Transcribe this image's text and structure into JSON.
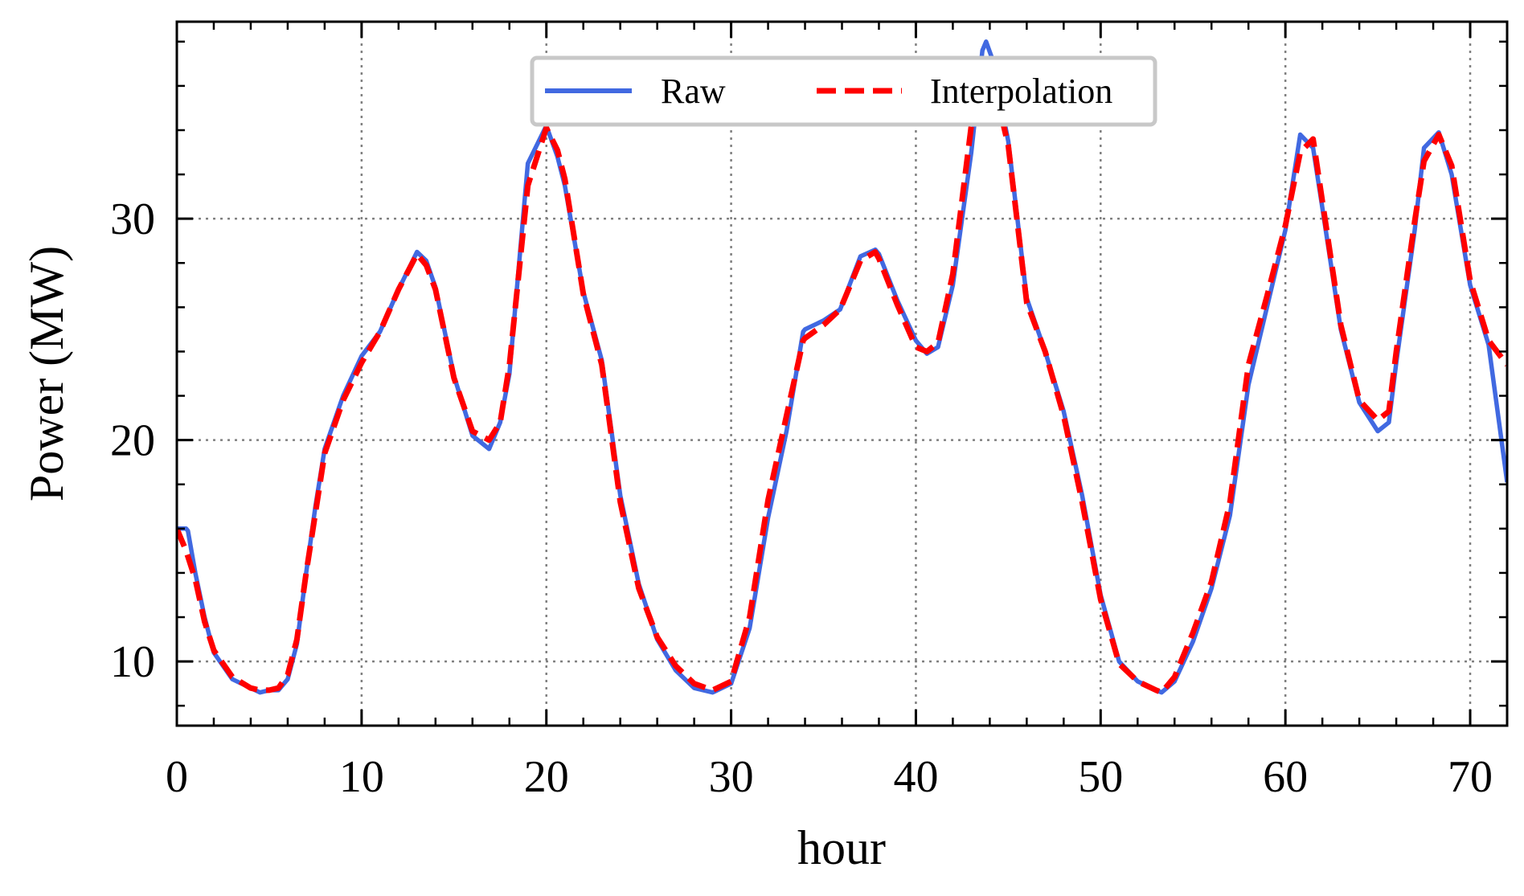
{
  "chart_data": {
    "type": "line",
    "xlabel": "hour",
    "ylabel": "Power (MW)",
    "xlim": [
      0,
      72
    ],
    "ylim": [
      7.1,
      38.9
    ],
    "xticks": [
      0,
      10,
      20,
      30,
      40,
      50,
      60,
      70
    ],
    "yticks": [
      10,
      20,
      30
    ],
    "x_minor_step": 2,
    "y_minor_step": 2,
    "grid": "on (dotted, major ticks)",
    "legend": {
      "position": "top-center",
      "columns": 2
    },
    "series": [
      {
        "name": "Raw",
        "color": "#4169e1",
        "style": "solid",
        "x": [
          0,
          0.5,
          0.6,
          1,
          1.5,
          2,
          3,
          4,
          4.5,
          5,
          5.5,
          6,
          6.5,
          7,
          7.5,
          8,
          9,
          10,
          11,
          12,
          13,
          13.5,
          14,
          15,
          16,
          16.9,
          17.5,
          18,
          19,
          20,
          20.6,
          21,
          22,
          23,
          24,
          25,
          26,
          27,
          28,
          29,
          30,
          31,
          32,
          33,
          33.9,
          34,
          35,
          35.9,
          37,
          37.8,
          38,
          39,
          40,
          40.6,
          41.2,
          42,
          43,
          43.6,
          43.8,
          44.1,
          45,
          46,
          47,
          48,
          49,
          50,
          51,
          52,
          53,
          53.3,
          54,
          55,
          56,
          57,
          58,
          59,
          60,
          60.8,
          61.5,
          62,
          63,
          64,
          65,
          65.6,
          66,
          67,
          67.5,
          68.3,
          69,
          70,
          71,
          72
        ],
        "y": [
          16,
          16,
          15.9,
          14,
          12,
          10.4,
          9.2,
          8.8,
          8.6,
          8.7,
          8.7,
          9.2,
          10.8,
          14,
          17,
          19.6,
          22,
          23.8,
          24.9,
          26.8,
          28.5,
          28.1,
          26.9,
          22.9,
          20.2,
          19.6,
          20.8,
          23,
          32.5,
          34.2,
          32.8,
          31.5,
          26.7,
          23.6,
          17.5,
          13.5,
          11,
          9.6,
          8.8,
          8.6,
          9,
          11.5,
          16.5,
          20.4,
          24.9,
          25,
          25.4,
          25.9,
          28.3,
          28.6,
          28.4,
          26.3,
          24.5,
          23.9,
          24.2,
          27,
          33,
          37.6,
          38,
          37.3,
          33.5,
          26.4,
          24,
          21.3,
          17.5,
          13,
          10,
          9.1,
          8.7,
          8.6,
          9.1,
          10.9,
          13.3,
          16.6,
          22.5,
          26,
          29.5,
          33.8,
          33.2,
          30.5,
          25,
          21.7,
          20.4,
          20.8,
          23.5,
          29.5,
          33.2,
          33.9,
          32,
          27,
          24.3,
          18.1
        ]
      },
      {
        "name": "Interpolation",
        "color": "#ff0000",
        "style": "dashed",
        "x": [
          0,
          0.5,
          1,
          1.5,
          2,
          3,
          4,
          4.5,
          5,
          5.5,
          6,
          6.5,
          7,
          7.5,
          8,
          9,
          10,
          11,
          12,
          13,
          13.5,
          14,
          15,
          16,
          16.9,
          17.5,
          18,
          19,
          20,
          20.6,
          21,
          22,
          23,
          24,
          25,
          26,
          27,
          28,
          29,
          30,
          31,
          32,
          33,
          33.9,
          34,
          35,
          35.9,
          37,
          37.8,
          38,
          39,
          40,
          40.6,
          41.2,
          42,
          43,
          43.6,
          43.8,
          44.1,
          45,
          46,
          47,
          48,
          49,
          50,
          51,
          52,
          53,
          53.3,
          54,
          55,
          56,
          57,
          58,
          59,
          60,
          60.8,
          61.5,
          62,
          63,
          64,
          65,
          65.6,
          66,
          67,
          67.5,
          68.3,
          69,
          70,
          71,
          72
        ],
        "y": [
          16,
          15,
          13.7,
          11.8,
          10.5,
          9.3,
          8.8,
          8.7,
          8.7,
          8.8,
          9.4,
          11,
          14,
          16.7,
          19.4,
          21.8,
          23.5,
          24.9,
          26.8,
          28.4,
          27.9,
          26.8,
          22.8,
          20.4,
          20,
          20.8,
          23.4,
          31.5,
          34.1,
          33.1,
          31.8,
          26.6,
          23.4,
          17.2,
          13.3,
          11.1,
          9.8,
          9,
          8.7,
          9.1,
          12,
          17.3,
          21.1,
          24.5,
          24.6,
          25.2,
          25.9,
          28.1,
          28.5,
          28.2,
          26.1,
          24.2,
          24,
          24.4,
          27.5,
          34.2,
          36.8,
          37,
          36.5,
          33.3,
          26.2,
          24,
          21.1,
          17.2,
          12.8,
          9.9,
          9.1,
          8.7,
          8.6,
          9.3,
          11.3,
          13.6,
          17.2,
          23.4,
          26.5,
          29.7,
          33,
          33.6,
          30.8,
          25.2,
          21.8,
          20.9,
          21.3,
          24,
          29.9,
          32.6,
          33.8,
          32.4,
          27.2,
          24.5,
          23.4
        ]
      }
    ]
  }
}
